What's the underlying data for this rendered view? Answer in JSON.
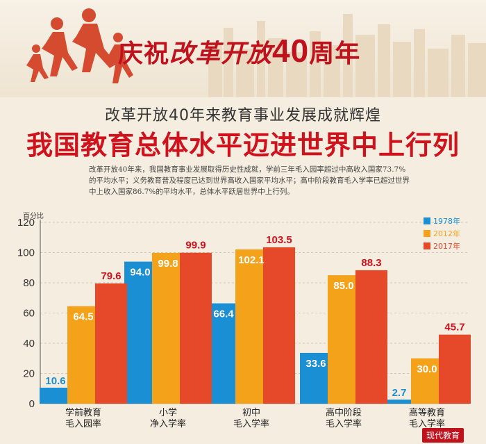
{
  "banner": {
    "part1": "庆祝",
    "part2": "改革开放",
    "part3": "40",
    "part4": "周年"
  },
  "subtitle": "改革开放40年来教育事业发展成就辉煌",
  "main_title": "我国教育总体水平迈进世界中上行列",
  "intro": "改革开放40年来，我国教育事业发展取得历史性成就，学前三年毛入园率超过中高收入国家73.7%的平均水平；义务教育普及程度已达到世界高收入国家平均水平；高中阶段教育毛入学率已超过世界中上收入国家86.7%的平均水平，总体水平跃居世界中上行列。",
  "watermark": "现代教育",
  "colors": {
    "s1978": "#1a8fd3",
    "s2012": "#f5a21b",
    "s2017": "#e5492a",
    "title_red": "#d0121c"
  },
  "chart_data": {
    "type": "bar",
    "ylabel": "百分比",
    "ylim": [
      0,
      120
    ],
    "yticks": [
      0,
      20,
      40,
      60,
      80,
      100,
      120
    ],
    "categories": [
      [
        "学前教育",
        "毛入园率"
      ],
      [
        "小学",
        "净入学率"
      ],
      [
        "初中",
        "毛入学率"
      ],
      [
        "高中阶段",
        "毛入学率"
      ],
      [
        "高等教育",
        "毛入学率"
      ]
    ],
    "series": [
      {
        "name": "1978年",
        "values": [
          10.6,
          94.0,
          66.4,
          33.6,
          2.7
        ]
      },
      {
        "name": "2012年",
        "values": [
          64.5,
          99.8,
          102.1,
          85.0,
          30.0
        ]
      },
      {
        "name": "2017年",
        "values": [
          79.6,
          99.9,
          103.5,
          88.3,
          45.7
        ]
      }
    ],
    "data_labels": [
      [
        "10.6",
        "94.0",
        "66.4",
        "33.6",
        "2.7"
      ],
      [
        "64.5",
        "99.8",
        "102.1",
        "85.0",
        "30.0"
      ],
      [
        "79.6",
        "99.9",
        "103.5",
        "88.3",
        "45.7"
      ]
    ],
    "grid": true,
    "legend_position": "top-right"
  }
}
